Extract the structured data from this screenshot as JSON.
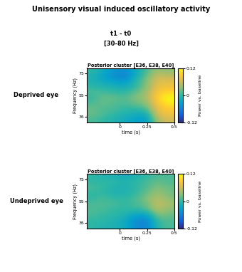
{
  "title": "Unisensory visual induced oscillatory activity",
  "subtitle": [
    "t1 - t0",
    "[30-80 Hz]"
  ],
  "chart_data": [
    {
      "type": "heatmap",
      "row_label": "Deprived eye",
      "title": "Posterior cluster [E36, E38, E40]",
      "xlabel": "time (s)",
      "ylabel": "Frequency (Hz)",
      "xlim": [
        -0.3,
        0.5
      ],
      "ylim": [
        30,
        80
      ],
      "xticks": [
        0,
        0.25,
        0.5
      ],
      "yticks": [
        35,
        55,
        75
      ],
      "cells": [
        [
          0.01,
          0.0,
          -0.01,
          -0.02,
          -0.03,
          -0.04,
          0.05,
          0.06
        ],
        [
          0.02,
          0.01,
          0.0,
          -0.01,
          -0.02,
          -0.02,
          0.07,
          0.08
        ],
        [
          0.02,
          0.01,
          0.01,
          0.0,
          0.0,
          0.01,
          0.08,
          0.09
        ],
        [
          0.01,
          0.02,
          0.01,
          0.01,
          0.02,
          0.03,
          0.09,
          0.11
        ],
        [
          0.0,
          0.02,
          0.02,
          0.01,
          0.03,
          0.04,
          0.1,
          0.12
        ],
        [
          0.01,
          0.01,
          0.0,
          0.0,
          0.02,
          0.04,
          0.09,
          0.1
        ],
        [
          0.0,
          -0.01,
          -0.01,
          -0.02,
          0.0,
          0.03,
          0.08,
          0.08
        ],
        [
          -0.01,
          -0.02,
          -0.03,
          -0.04,
          0.0,
          0.03,
          0.07,
          0.07
        ],
        [
          -0.01,
          -0.03,
          -0.05,
          -0.06,
          -0.02,
          0.02,
          0.06,
          0.05
        ],
        [
          0.0,
          -0.02,
          -0.04,
          -0.05,
          -0.02,
          0.01,
          0.04,
          0.03
        ]
      ],
      "colorbar": {
        "label": "Power vs. baseline",
        "range": [
          -0.12,
          0.12
        ],
        "ticks": [
          -0.12,
          0,
          0.12
        ]
      }
    },
    {
      "type": "heatmap",
      "row_label": "Undeprived eye",
      "title": "Posterior cluster [E36, E38, E40]",
      "xlabel": "time (s)",
      "ylabel": "Frequency (Hz)",
      "xlim": [
        -0.3,
        0.5
      ],
      "ylim": [
        30,
        80
      ],
      "xticks": [
        0,
        0.25,
        0.5
      ],
      "yticks": [
        35,
        55,
        75
      ],
      "cells": [
        [
          0.0,
          -0.01,
          -0.01,
          -0.02,
          -0.05,
          -0.06,
          0.0,
          0.01
        ],
        [
          0.0,
          0.0,
          -0.01,
          -0.02,
          -0.05,
          -0.06,
          0.01,
          0.01
        ],
        [
          0.01,
          0.0,
          0.0,
          -0.01,
          -0.03,
          -0.03,
          0.03,
          0.02
        ],
        [
          0.01,
          0.01,
          0.0,
          0.0,
          0.0,
          0.01,
          0.05,
          0.03
        ],
        [
          0.01,
          0.01,
          0.01,
          0.0,
          0.01,
          0.02,
          0.06,
          0.04
        ],
        [
          0.0,
          0.01,
          0.0,
          0.0,
          0.01,
          0.03,
          0.05,
          0.03
        ],
        [
          0.0,
          0.0,
          -0.01,
          -0.01,
          0.0,
          0.02,
          0.04,
          0.02
        ],
        [
          0.01,
          0.0,
          -0.01,
          -0.01,
          0.0,
          0.01,
          0.03,
          0.02
        ],
        [
          0.0,
          0.0,
          0.0,
          -0.01,
          0.0,
          0.01,
          0.02,
          0.01
        ],
        [
          0.0,
          -0.01,
          -0.01,
          -0.02,
          -0.01,
          0.0,
          0.01,
          0.01
        ]
      ],
      "colorbar": {
        "label": "Power vs. baseline",
        "range": [
          -0.12,
          0.12
        ],
        "ticks": [
          -0.12,
          0,
          0.12
        ]
      }
    }
  ]
}
